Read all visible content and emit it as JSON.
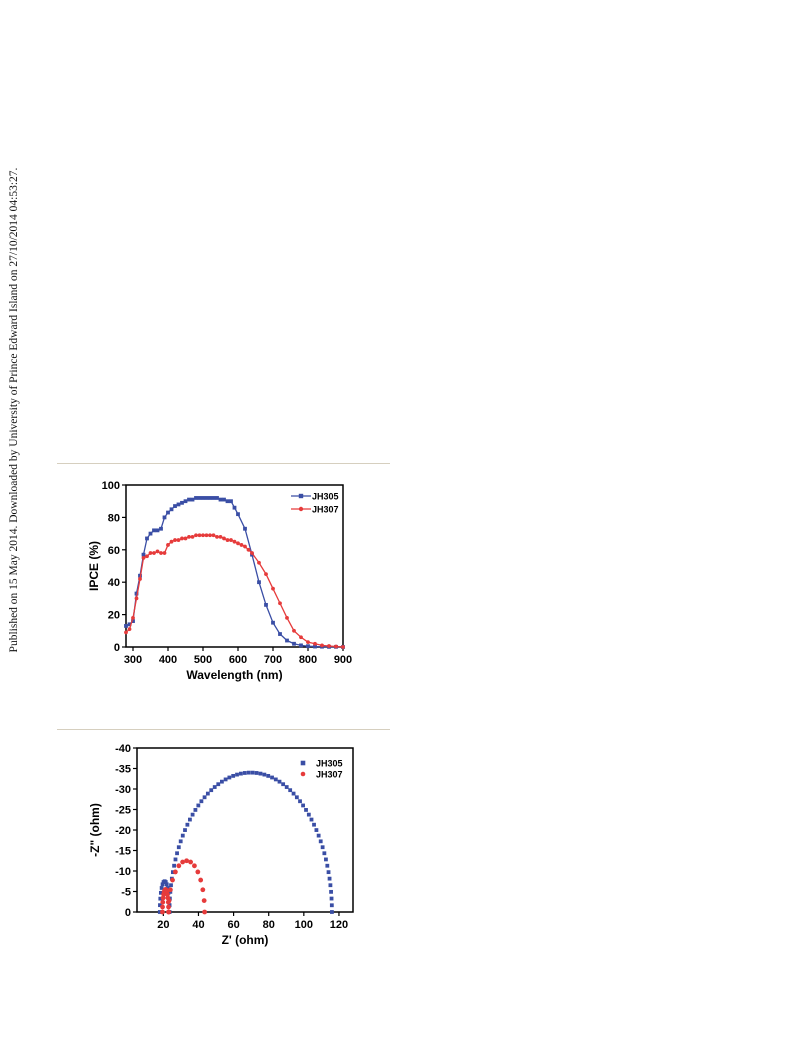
{
  "sidebar": {
    "text": "Published on 15 May 2014. Downloaded by University of Prince Edward Island on 27/10/2014 04:53:27."
  },
  "colors": {
    "JH305": "#3a4ea5",
    "JH307": "#e63b3b",
    "divider": "#d6cfbf"
  },
  "chart_data": [
    {
      "type": "line",
      "title": "",
      "xlabel": "Wavelength (nm)",
      "ylabel": "IPCE (%)",
      "xlim": [
        280,
        900
      ],
      "ylim": [
        0,
        100
      ],
      "xticks": [
        300,
        400,
        500,
        600,
        700,
        800,
        900
      ],
      "yticks": [
        0,
        20,
        40,
        60,
        80,
        100
      ],
      "legend_position": "top-right",
      "series": [
        {
          "name": "JH305",
          "marker": "square",
          "color": "#3a4ea5",
          "x": [
            280,
            290,
            300,
            310,
            320,
            330,
            340,
            350,
            360,
            370,
            380,
            390,
            400,
            410,
            420,
            430,
            440,
            450,
            460,
            470,
            480,
            490,
            500,
            510,
            520,
            530,
            540,
            550,
            560,
            570,
            580,
            590,
            600,
            620,
            640,
            660,
            680,
            700,
            720,
            740,
            760,
            780,
            800,
            820,
            840,
            860,
            880,
            900
          ],
          "y": [
            13,
            14,
            16,
            33,
            44,
            57,
            67,
            70,
            72,
            72,
            73,
            80,
            83,
            85,
            87,
            88,
            89,
            90,
            91,
            91,
            92,
            92,
            92,
            92,
            92,
            92,
            92,
            91,
            91,
            90,
            90,
            86,
            82,
            73,
            57,
            40,
            26,
            15,
            8,
            4,
            2,
            1,
            0.5,
            0.3,
            0.2,
            0.1,
            0.1,
            0
          ]
        },
        {
          "name": "JH307",
          "marker": "circle",
          "color": "#e63b3b",
          "x": [
            280,
            290,
            300,
            310,
            320,
            330,
            340,
            350,
            360,
            370,
            380,
            390,
            400,
            410,
            420,
            430,
            440,
            450,
            460,
            470,
            480,
            490,
            500,
            510,
            520,
            530,
            540,
            550,
            560,
            570,
            580,
            590,
            600,
            610,
            620,
            630,
            640,
            660,
            680,
            700,
            720,
            740,
            760,
            780,
            800,
            820,
            840,
            860,
            880,
            900
          ],
          "y": [
            9,
            11,
            18,
            30,
            42,
            55,
            56,
            58,
            58,
            59,
            58,
            58,
            63,
            65,
            66,
            66,
            67,
            67,
            68,
            68,
            69,
            69,
            69,
            69,
            69,
            69,
            68,
            68,
            67,
            66,
            66,
            65,
            64,
            63,
            62,
            60,
            58,
            52,
            45,
            36,
            27,
            18,
            10,
            6,
            3,
            2,
            1,
            0.6,
            0.3,
            0
          ]
        }
      ]
    },
    {
      "type": "scatter",
      "title": "",
      "xlabel": "Z' (ohm)",
      "ylabel": "-Z\" (ohm)",
      "xlim": [
        5,
        128
      ],
      "ylim": [
        0,
        -40
      ],
      "xticks": [
        20,
        40,
        60,
        80,
        100,
        120
      ],
      "yticks": [
        0,
        -5,
        -10,
        -15,
        -20,
        -25,
        -30,
        -35,
        -40
      ],
      "legend_position": "top-right",
      "series": [
        {
          "name": "JH305",
          "marker": "square",
          "color": "#3a4ea5",
          "arcs": [
            {
              "x_start": 18,
              "x_end": 23.5,
              "peak": -7.5
            },
            {
              "x_start": 23.5,
              "x_end": 116,
              "peak": -34
            }
          ]
        },
        {
          "name": "JH307",
          "marker": "circle",
          "color": "#e63b3b",
          "arcs": [
            {
              "x_start": 19.5,
              "x_end": 23,
              "peak": -5.5
            },
            {
              "x_start": 23,
              "x_end": 43.5,
              "peak": -12.5
            }
          ]
        }
      ]
    }
  ]
}
